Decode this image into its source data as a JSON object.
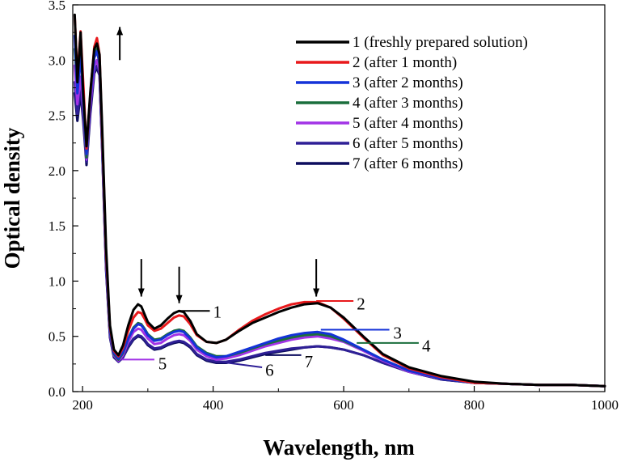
{
  "chart_data": {
    "type": "line",
    "title": "",
    "xlabel": "Wavelength, nm",
    "ylabel": "Optical density",
    "xlim": [
      185,
      1000
    ],
    "ylim": [
      0,
      3.5
    ],
    "x_ticks": [
      200,
      400,
      600,
      800,
      1000
    ],
    "x_tick_labels": [
      "200",
      "400",
      "600",
      "800",
      "1000"
    ],
    "y_ticks": [
      0,
      0.5,
      1.0,
      1.5,
      2.0,
      2.5,
      3.0,
      3.5
    ],
    "y_tick_labels": [
      "0.0",
      "0.5",
      "1.0",
      "1.5",
      "2.0",
      "2.5",
      "3.0",
      "3.5"
    ],
    "grid": false,
    "legend_position": "top-right",
    "series": [
      {
        "name": "1 (freshly prepared solution)",
        "curve_label": "1",
        "color": "#000000",
        "x": [
          188,
          192,
          197,
          201,
          206,
          212,
          218,
          222,
          226,
          230,
          236,
          242,
          248,
          255,
          262,
          270,
          278,
          285,
          290,
          295,
          300,
          310,
          320,
          330,
          340,
          348,
          355,
          365,
          375,
          390,
          405,
          420,
          440,
          460,
          480,
          500,
          520,
          540,
          560,
          580,
          600,
          630,
          660,
          700,
          750,
          800,
          850,
          900,
          950,
          1000
        ],
        "y": [
          3.41,
          2.8,
          3.25,
          2.7,
          2.22,
          2.72,
          3.1,
          3.15,
          3.05,
          2.4,
          1.3,
          0.6,
          0.38,
          0.33,
          0.42,
          0.6,
          0.74,
          0.79,
          0.77,
          0.7,
          0.63,
          0.57,
          0.6,
          0.66,
          0.71,
          0.73,
          0.72,
          0.64,
          0.52,
          0.45,
          0.44,
          0.47,
          0.55,
          0.62,
          0.67,
          0.72,
          0.76,
          0.79,
          0.8,
          0.76,
          0.67,
          0.5,
          0.34,
          0.22,
          0.14,
          0.09,
          0.07,
          0.06,
          0.06,
          0.05
        ]
      },
      {
        "name": "2 (after 1 month)",
        "curve_label": "2",
        "color": "#e8191c",
        "x": [
          188,
          192,
          197,
          201,
          206,
          212,
          218,
          222,
          226,
          230,
          236,
          242,
          248,
          255,
          262,
          270,
          278,
          285,
          290,
          295,
          300,
          310,
          320,
          330,
          340,
          348,
          355,
          365,
          375,
          390,
          405,
          420,
          440,
          460,
          480,
          500,
          520,
          540,
          560,
          580,
          600,
          630,
          660,
          700,
          750,
          800,
          850,
          900,
          950,
          1000
        ],
        "y": [
          3.4,
          2.85,
          3.26,
          2.8,
          2.2,
          2.7,
          3.12,
          3.2,
          3.05,
          2.35,
          1.25,
          0.58,
          0.37,
          0.32,
          0.4,
          0.55,
          0.67,
          0.72,
          0.71,
          0.66,
          0.6,
          0.55,
          0.57,
          0.62,
          0.67,
          0.69,
          0.68,
          0.61,
          0.51,
          0.45,
          0.44,
          0.47,
          0.56,
          0.64,
          0.7,
          0.75,
          0.79,
          0.81,
          0.81,
          0.76,
          0.66,
          0.49,
          0.33,
          0.21,
          0.13,
          0.08,
          0.07,
          0.06,
          0.06,
          0.05
        ]
      },
      {
        "name": "3 (after 2 months)",
        "curve_label": "3",
        "color": "#1432d8",
        "x": [
          188,
          192,
          197,
          201,
          206,
          212,
          218,
          222,
          226,
          230,
          236,
          242,
          248,
          255,
          262,
          270,
          278,
          285,
          290,
          295,
          300,
          310,
          320,
          330,
          340,
          348,
          355,
          365,
          375,
          390,
          405,
          420,
          440,
          460,
          480,
          500,
          520,
          540,
          560,
          580,
          600,
          630,
          660,
          700,
          750,
          800,
          850,
          900,
          950,
          1000
        ],
        "y": [
          3.22,
          2.7,
          3.05,
          2.65,
          2.15,
          2.65,
          3.02,
          3.08,
          2.98,
          2.3,
          1.2,
          0.55,
          0.35,
          0.3,
          0.36,
          0.48,
          0.57,
          0.61,
          0.6,
          0.56,
          0.51,
          0.46,
          0.47,
          0.51,
          0.54,
          0.55,
          0.54,
          0.48,
          0.4,
          0.34,
          0.31,
          0.32,
          0.36,
          0.4,
          0.44,
          0.48,
          0.51,
          0.53,
          0.54,
          0.52,
          0.47,
          0.38,
          0.29,
          0.19,
          0.12,
          0.08,
          0.07,
          0.06,
          0.06,
          0.05
        ]
      },
      {
        "name": "4 (after 3 months)",
        "curve_label": "4",
        "color": "#1a6e3c",
        "x": [
          188,
          192,
          197,
          201,
          206,
          212,
          218,
          222,
          226,
          230,
          236,
          242,
          248,
          255,
          262,
          270,
          278,
          285,
          290,
          295,
          300,
          310,
          320,
          330,
          340,
          348,
          355,
          365,
          375,
          390,
          405,
          420,
          440,
          460,
          480,
          500,
          520,
          540,
          560,
          580,
          600,
          630,
          660,
          700,
          750,
          800,
          850,
          900,
          950,
          1000
        ],
        "y": [
          3.1,
          2.75,
          3.1,
          2.62,
          2.12,
          2.68,
          3.05,
          3.1,
          2.96,
          2.28,
          1.18,
          0.54,
          0.34,
          0.29,
          0.35,
          0.48,
          0.58,
          0.62,
          0.61,
          0.57,
          0.52,
          0.47,
          0.48,
          0.52,
          0.55,
          0.56,
          0.55,
          0.49,
          0.41,
          0.35,
          0.32,
          0.32,
          0.35,
          0.39,
          0.43,
          0.46,
          0.49,
          0.51,
          0.52,
          0.5,
          0.46,
          0.38,
          0.29,
          0.19,
          0.12,
          0.08,
          0.07,
          0.06,
          0.06,
          0.05
        ]
      },
      {
        "name": "5 (after 4 months)",
        "curve_label": "5",
        "color": "#a233e6",
        "x": [
          188,
          192,
          197,
          201,
          206,
          212,
          218,
          222,
          226,
          230,
          236,
          242,
          248,
          255,
          262,
          270,
          278,
          285,
          290,
          295,
          300,
          310,
          320,
          330,
          340,
          348,
          355,
          365,
          375,
          390,
          405,
          420,
          440,
          460,
          480,
          500,
          520,
          540,
          560,
          580,
          600,
          630,
          660,
          700,
          750,
          800,
          850,
          900,
          950,
          1000
        ],
        "y": [
          2.95,
          2.6,
          2.85,
          2.55,
          2.1,
          2.6,
          2.95,
          3.0,
          2.9,
          2.25,
          1.15,
          0.52,
          0.33,
          0.28,
          0.33,
          0.45,
          0.54,
          0.57,
          0.56,
          0.52,
          0.48,
          0.43,
          0.44,
          0.48,
          0.51,
          0.52,
          0.51,
          0.46,
          0.38,
          0.32,
          0.29,
          0.3,
          0.33,
          0.37,
          0.41,
          0.44,
          0.47,
          0.49,
          0.5,
          0.48,
          0.45,
          0.37,
          0.28,
          0.18,
          0.12,
          0.08,
          0.07,
          0.06,
          0.06,
          0.05
        ]
      },
      {
        "name": "6 (after 5 months)",
        "curve_label": "6",
        "color": "#2e1f96",
        "x": [
          188,
          192,
          197,
          201,
          206,
          212,
          218,
          222,
          226,
          230,
          236,
          242,
          248,
          255,
          262,
          270,
          278,
          285,
          290,
          295,
          300,
          310,
          320,
          330,
          340,
          348,
          355,
          365,
          375,
          390,
          405,
          420,
          440,
          460,
          480,
          500,
          520,
          540,
          560,
          580,
          600,
          630,
          660,
          700,
          750,
          800,
          850,
          900,
          950,
          1000
        ],
        "y": [
          2.8,
          2.5,
          2.75,
          2.5,
          2.08,
          2.55,
          2.9,
          2.95,
          2.88,
          2.22,
          1.12,
          0.5,
          0.32,
          0.27,
          0.31,
          0.41,
          0.48,
          0.51,
          0.5,
          0.47,
          0.43,
          0.39,
          0.4,
          0.43,
          0.45,
          0.46,
          0.45,
          0.41,
          0.34,
          0.29,
          0.27,
          0.27,
          0.29,
          0.32,
          0.35,
          0.37,
          0.39,
          0.4,
          0.41,
          0.4,
          0.38,
          0.33,
          0.26,
          0.18,
          0.11,
          0.08,
          0.07,
          0.06,
          0.06,
          0.05
        ]
      },
      {
        "name": "7 (after 6 months)",
        "curve_label": "7",
        "color": "#0c0c5e",
        "x": [
          188,
          192,
          197,
          201,
          206,
          212,
          218,
          222,
          226,
          230,
          236,
          242,
          248,
          255,
          262,
          270,
          278,
          285,
          290,
          295,
          300,
          310,
          320,
          330,
          340,
          348,
          355,
          365,
          375,
          390,
          405,
          420,
          440,
          460,
          480,
          500,
          520,
          540,
          560,
          580,
          600,
          630,
          660,
          700,
          750,
          800,
          850,
          900,
          950,
          1000
        ],
        "y": [
          2.7,
          2.45,
          2.7,
          2.45,
          2.05,
          2.52,
          2.88,
          2.93,
          2.86,
          2.2,
          1.1,
          0.49,
          0.31,
          0.27,
          0.31,
          0.4,
          0.47,
          0.5,
          0.49,
          0.46,
          0.42,
          0.38,
          0.39,
          0.42,
          0.44,
          0.45,
          0.44,
          0.4,
          0.33,
          0.28,
          0.26,
          0.26,
          0.28,
          0.31,
          0.34,
          0.36,
          0.38,
          0.4,
          0.41,
          0.4,
          0.38,
          0.33,
          0.26,
          0.18,
          0.11,
          0.08,
          0.07,
          0.06,
          0.06,
          0.05
        ]
      }
    ],
    "annotations": {
      "arrow_up_x": 257,
      "arrows_down_x": [
        290,
        348,
        558
      ]
    }
  }
}
